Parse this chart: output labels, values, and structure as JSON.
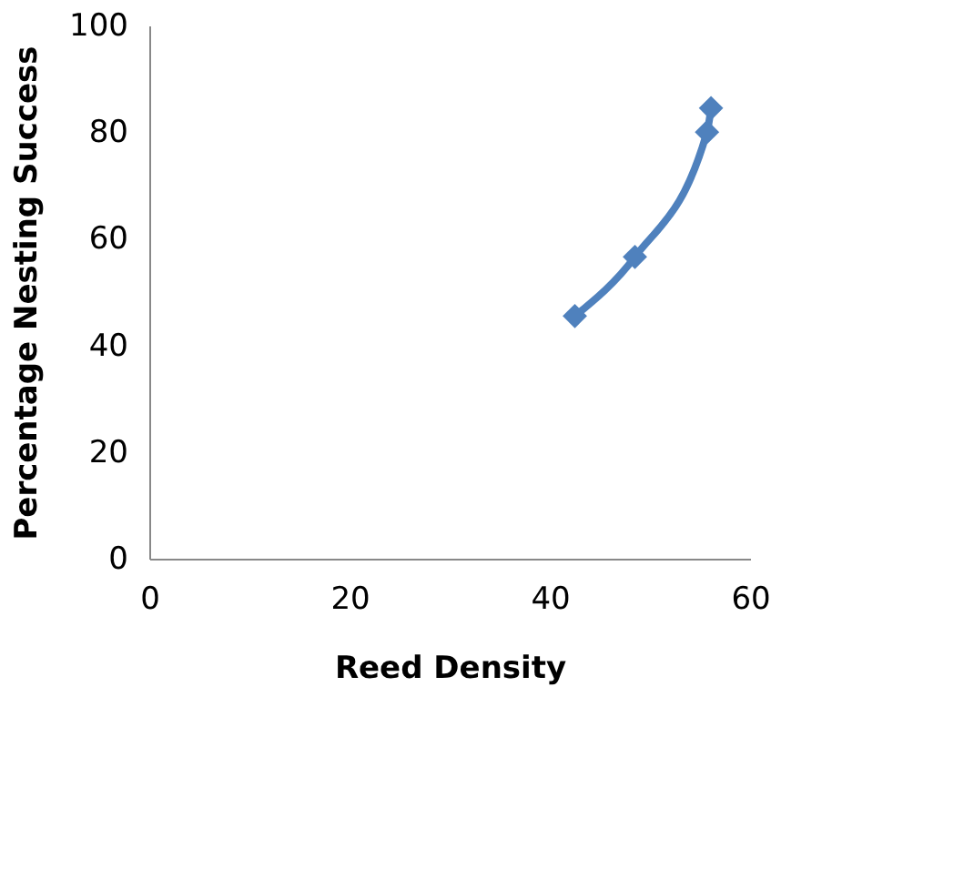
{
  "chart_data": {
    "type": "line",
    "xlabel": "Reed Density",
    "ylabel": "Percentage Nesting Success",
    "x": [
      42.5,
      48.5,
      55.7,
      56.1
    ],
    "series": [
      {
        "color": "#4f81bd",
        "values": [
          45.5,
          56.6,
          80,
          84.5
        ]
      }
    ],
    "xlim": [
      0,
      60
    ],
    "xticks": [
      0,
      20,
      40,
      60
    ],
    "ylim": [
      0,
      100
    ],
    "yticks": [
      0,
      20,
      40,
      60,
      80,
      100
    ],
    "grid": false,
    "legend": false,
    "marker": "diamond",
    "line_style": "solid"
  }
}
